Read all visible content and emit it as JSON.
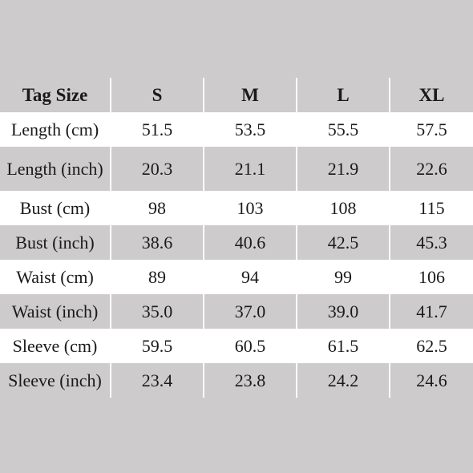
{
  "table": {
    "header": [
      "Tag Size",
      "S",
      "M",
      "L",
      "XL"
    ],
    "rows": [
      [
        "Length (cm)",
        "51.5",
        "53.5",
        "55.5",
        "57.5"
      ],
      [
        "Length (inch)",
        "20.3",
        "21.1",
        "21.9",
        "22.6"
      ],
      [
        "Bust (cm)",
        "98",
        "103",
        "108",
        "115"
      ],
      [
        "Bust (inch)",
        "38.6",
        "40.6",
        "42.5",
        "45.3"
      ],
      [
        "Waist (cm)",
        "89",
        "94",
        "99",
        "106"
      ],
      [
        "Waist (inch)",
        "35.0",
        "37.0",
        "39.0",
        "41.7"
      ],
      [
        "Sleeve (cm)",
        "59.5",
        "60.5",
        "61.5",
        "62.5"
      ],
      [
        "Sleeve (inch)",
        "23.4",
        "23.8",
        "24.2",
        "24.6"
      ]
    ]
  }
}
